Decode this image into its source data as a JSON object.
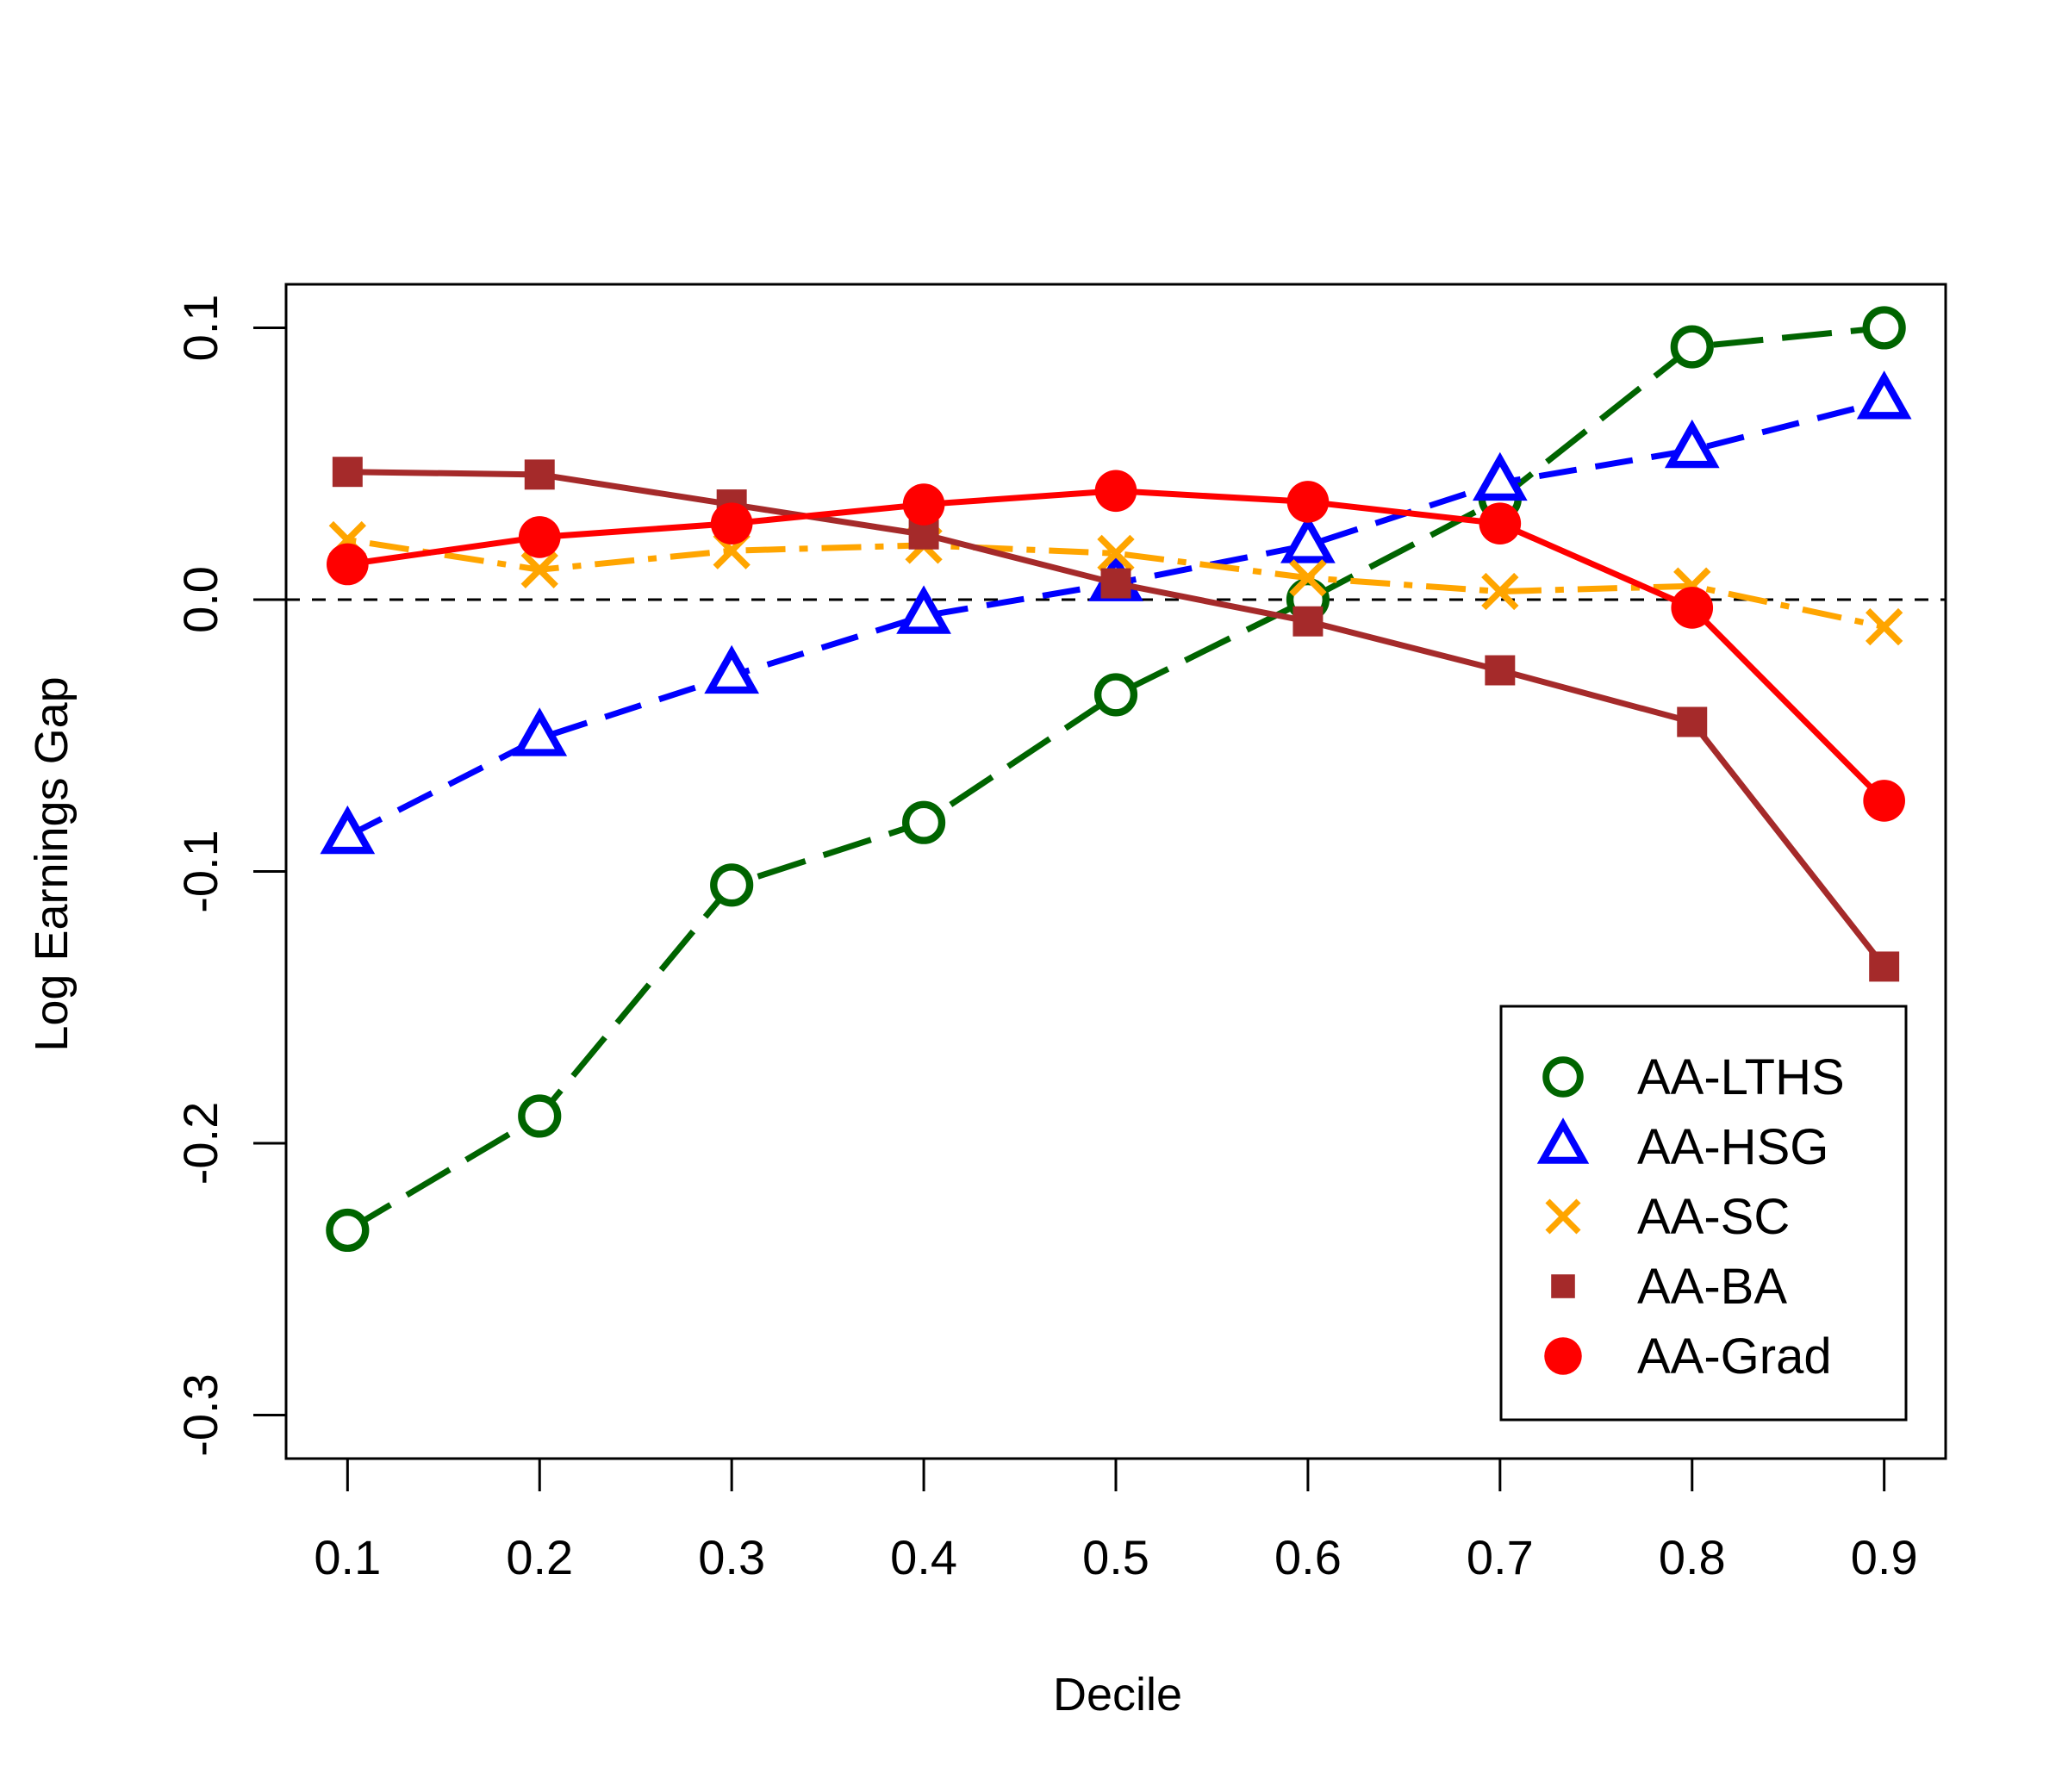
{
  "chart_data": {
    "type": "line",
    "title": "",
    "xlabel": "Decile",
    "ylabel": "Log Earnings Gap",
    "x": [
      0.1,
      0.2,
      0.3,
      0.4,
      0.5,
      0.6,
      0.7,
      0.8,
      0.9
    ],
    "x_tick_labels": [
      "0.1",
      "0.2",
      "0.3",
      "0.4",
      "0.5",
      "0.6",
      "0.7",
      "0.8",
      "0.9"
    ],
    "y_ticks": [
      -0.3,
      -0.2,
      -0.1,
      0.0,
      0.1
    ],
    "y_tick_labels": [
      "-0.3",
      "-0.2",
      "-0.1",
      "0.0",
      "0.1"
    ],
    "xlim": [
      0.068,
      0.932
    ],
    "ylim": [
      -0.316,
      0.116
    ],
    "reference_line": {
      "y": 0.0,
      "style": "dashed",
      "color": "#000000"
    },
    "grid": false,
    "legend_position": "bottom-right",
    "series": [
      {
        "name": "AA-LTHS",
        "color": "#006400",
        "marker": "open-circle",
        "line": "long-dash",
        "values": [
          -0.232,
          -0.19,
          -0.105,
          -0.082,
          -0.035,
          0.0,
          0.037,
          0.093,
          0.1
        ]
      },
      {
        "name": "AA-HSG",
        "color": "#0000ff",
        "marker": "open-triangle",
        "line": "dashed",
        "values": [
          -0.087,
          -0.051,
          -0.028,
          -0.006,
          0.006,
          0.02,
          0.043,
          0.055,
          0.073
        ]
      },
      {
        "name": "AA-SC",
        "color": "#ffa500",
        "marker": "x",
        "line": "dot-dash",
        "values": [
          0.022,
          0.011,
          0.018,
          0.02,
          0.017,
          0.008,
          0.003,
          0.005,
          -0.01
        ]
      },
      {
        "name": "AA-BA",
        "color": "#a52a2a",
        "marker": "filled-square",
        "line": "solid",
        "values": [
          0.047,
          0.046,
          0.035,
          0.024,
          0.006,
          -0.008,
          -0.026,
          -0.045,
          -0.135
        ]
      },
      {
        "name": "AA-Grad",
        "color": "#ff0000",
        "marker": "filled-circle",
        "line": "solid",
        "values": [
          0.013,
          0.023,
          0.028,
          0.035,
          0.04,
          0.036,
          0.028,
          -0.003,
          -0.074
        ]
      }
    ]
  }
}
